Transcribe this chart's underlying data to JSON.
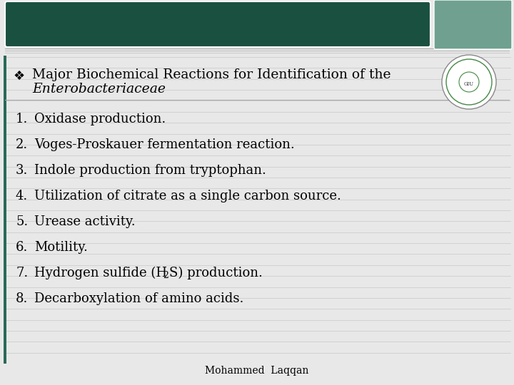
{
  "bg_color": "#e8e8e8",
  "header_box_color": "#1a5040",
  "header_box2_color": "#6fa090",
  "bullet_title_line1": "Major Biochemical Reactions for Identification of the",
  "bullet_title_line2": "Enterobacteriaceae",
  "bullet_symbol": "❖",
  "items": [
    "Oxidase production.",
    "Voges-Proskauer fermentation reaction.",
    "Indole production from tryptophan.",
    "Utilization of citrate as a single carbon source.",
    "Urease activity.",
    "Motility.",
    "Hydrogen sulfide (H₂S) production.",
    "Decarboxylation of amino acids."
  ],
  "footer_text": "Mohammed  Laqqan",
  "text_color": "#000000",
  "left_stripe_color": "#2a6a58",
  "left_lines_color": "#c8c8c8",
  "separator_color": "#aaaaaa",
  "white": "#ffffff"
}
